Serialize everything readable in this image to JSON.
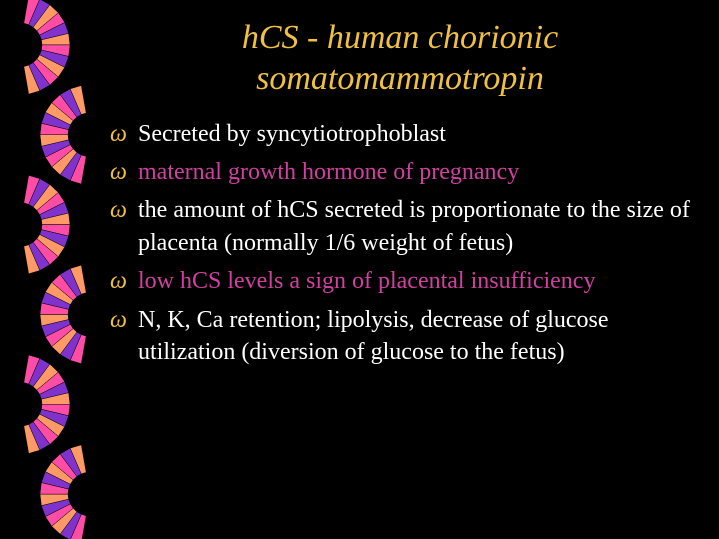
{
  "colors": {
    "background": "#000000",
    "title": "#f0c040",
    "text_primary": "#ffffff",
    "text_accent": "#d040a0",
    "bullet_marker": "#f0c040",
    "fan_pink": "#ff4da6",
    "fan_purple": "#8033cc",
    "fan_salmon": "#ff9966"
  },
  "title": {
    "line1": "hCS - human chorionic",
    "line2": "somatomammotropin",
    "fontsize": 34,
    "font_style": "italic"
  },
  "bullet_marker": "ω",
  "body_fontsize": 24,
  "bullets": [
    {
      "text": "Secreted by syncytiotrophoblast",
      "color": "text_primary"
    },
    {
      "text": "maternal growth hormone of pregnancy",
      "color": "text_accent"
    },
    {
      "text": "the amount of hCS secreted is proportionate to the size of placenta (normally 1/6 weight of fetus)",
      "color": "text_primary"
    },
    {
      "text": "low hCS levels a sign of placental insufficiency",
      "color": "text_accent"
    },
    {
      "text": "N, K, Ca retention; lipolysis, decrease of glucose utilization (diversion of glucose to the fetus)",
      "color": "text_primary"
    }
  ],
  "decoration": {
    "type": "fan-helix",
    "fan_count": 6,
    "segments_per_fan": 12
  }
}
